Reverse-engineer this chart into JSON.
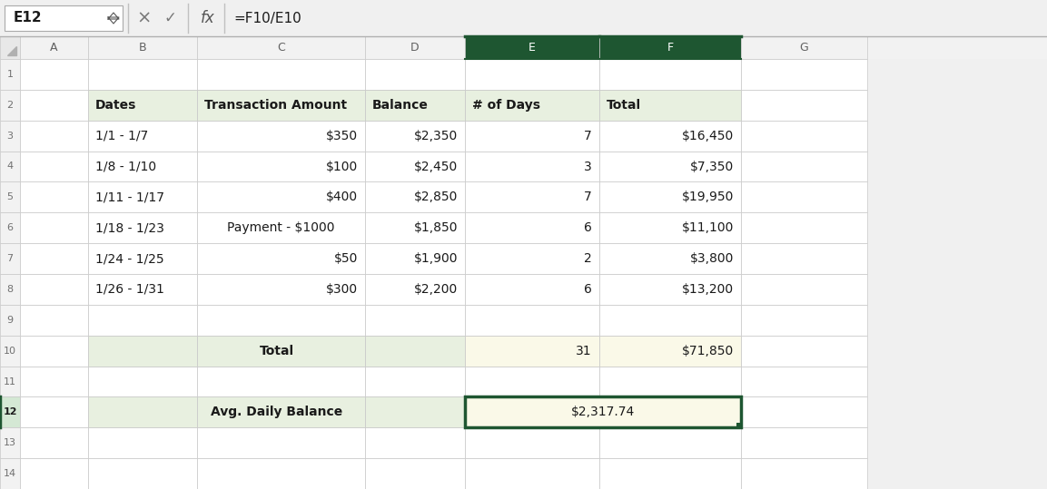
{
  "formula_bar_cell": "E12",
  "formula_bar_formula": "=F10/E10",
  "col_headers": [
    "A",
    "B",
    "C",
    "D",
    "E",
    "F",
    "G"
  ],
  "data_rows": [
    [
      "1/1 - 1/7",
      "$350",
      "$2,350",
      "7",
      "$16,450"
    ],
    [
      "1/8 - 1/10",
      "$100",
      "$2,450",
      "3",
      "$7,350"
    ],
    [
      "1/11 - 1/17",
      "$400",
      "$2,850",
      "7",
      "$19,950"
    ],
    [
      "1/18 - 1/23",
      "Payment - $1000",
      "$1,850",
      "6",
      "$11,100"
    ],
    [
      "1/24 - 1/25",
      "$50",
      "$1,900",
      "2",
      "$3,800"
    ],
    [
      "1/26 - 1/31",
      "$300",
      "$2,200",
      "6",
      "$13,200"
    ]
  ],
  "total_row_label": "Total",
  "total_days": "31",
  "total_amount": "$71,850",
  "avg_label": "Avg. Daily Balance",
  "avg_value": "$2,317.74",
  "header_bg": "#e8f0e0",
  "total_row_bg": "#e8f0e0",
  "total_ef_bg": "#faf9e8",
  "avg_value_bg": "#faf9e8",
  "active_border_color": "#1e5631",
  "grid_color": "#c8c8c8",
  "col_header_selected_color": "#1e5631",
  "col_header_selected_text": "#ffffff",
  "col_header_bg": "#f2f2f2",
  "row_header_bg": "#f2f2f2",
  "text_color": "#1a1a1a",
  "formula_bar_bg": "#ffffff"
}
